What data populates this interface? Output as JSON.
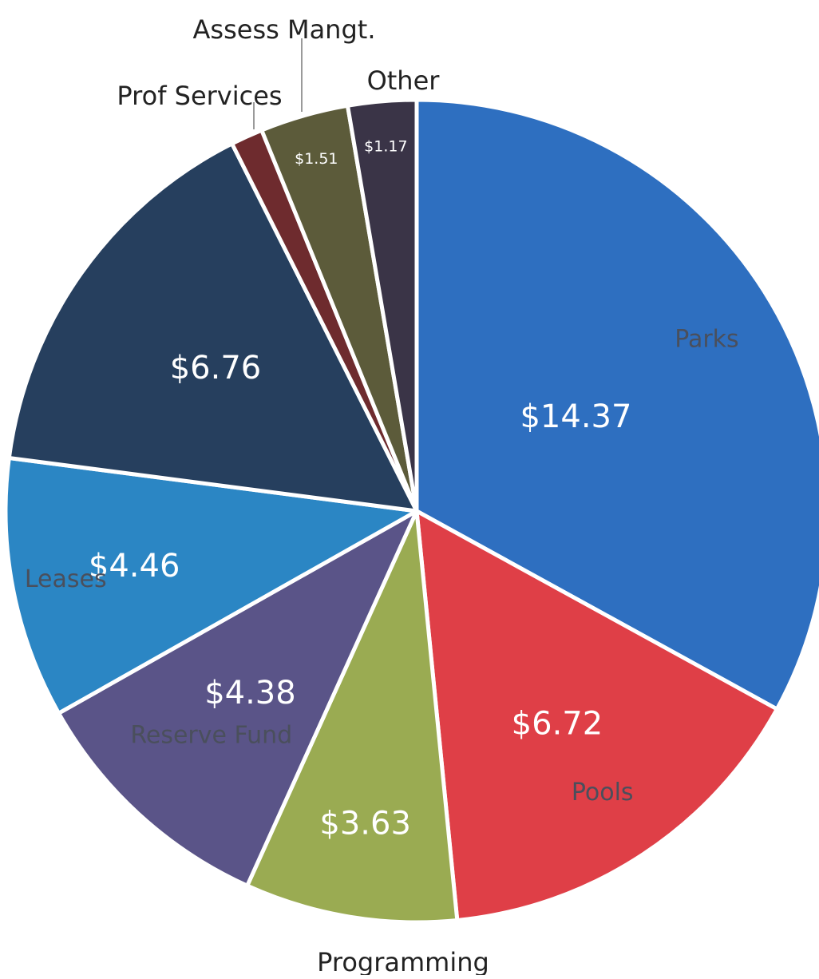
{
  "chart_data": {
    "type": "pie",
    "slices": [
      {
        "category": "Parks",
        "label": "$14.37",
        "value": 14.37,
        "color": "#2e6fc0"
      },
      {
        "category": "Pools",
        "label": "$6.72",
        "value": 6.72,
        "color": "#df3f47"
      },
      {
        "category": "Programming",
        "label": "$3.63",
        "value": 3.63,
        "color": "#9aab52"
      },
      {
        "category": "Reserve Fund",
        "label": "$4.38",
        "value": 4.38,
        "color": "#5a5488"
      },
      {
        "category": "Leases",
        "label": "$4.46",
        "value": 4.46,
        "color": "#2b86c4"
      },
      {
        "category": "",
        "label": "$6.76",
        "value": 6.76,
        "color": "#263f5e"
      },
      {
        "category": "Prof Services",
        "label": "",
        "value": 0.55,
        "color": "#6e2b2e"
      },
      {
        "category": "Assess Mangt.",
        "label": "$1.51",
        "value": 1.51,
        "color": "#5c5b3a"
      },
      {
        "category": "Other",
        "label": "$1.17",
        "value": 1.17,
        "color": "#3a3447"
      }
    ]
  }
}
